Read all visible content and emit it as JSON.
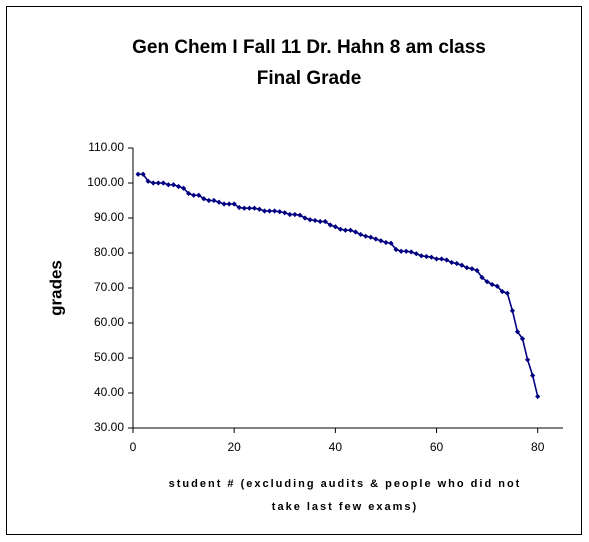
{
  "chart_data": {
    "type": "line",
    "title": [
      "Gen Chem I Fall 11 Dr. Hahn 8 am class",
      "Final Grade"
    ],
    "y_label": "grades",
    "x_label": [
      "student # (excluding audits & people who did not",
      "take last few exams)"
    ],
    "x": [
      1,
      2,
      3,
      4,
      5,
      6,
      7,
      8,
      9,
      10,
      11,
      12,
      13,
      14,
      15,
      16,
      17,
      18,
      19,
      20,
      21,
      22,
      23,
      24,
      25,
      26,
      27,
      28,
      29,
      30,
      31,
      32,
      33,
      34,
      35,
      36,
      37,
      38,
      39,
      40,
      41,
      42,
      43,
      44,
      45,
      46,
      47,
      48,
      49,
      50,
      51,
      52,
      53,
      54,
      55,
      56,
      57,
      58,
      59,
      60,
      61,
      62,
      63,
      64,
      65,
      66,
      67,
      68,
      69,
      70,
      71,
      72,
      73,
      74,
      75,
      76,
      77,
      78,
      79,
      80
    ],
    "series": [
      {
        "name": "grades",
        "color": "#000080",
        "values": [
          102.5,
          102.5,
          100.5,
          100,
          100,
          100,
          99.5,
          99.5,
          99,
          98.5,
          97,
          96.5,
          96.5,
          95.5,
          95,
          95,
          94.5,
          94,
          94,
          94,
          93,
          92.8,
          92.8,
          92.8,
          92.5,
          92,
          92,
          92,
          91.8,
          91.5,
          91,
          91,
          90.8,
          90,
          89.5,
          89.3,
          89,
          89,
          88,
          87.5,
          86.8,
          86.5,
          86.5,
          86,
          85.3,
          84.8,
          84.5,
          84,
          83.5,
          83,
          82.8,
          81,
          80.5,
          80.5,
          80.3,
          79.8,
          79.2,
          79,
          78.8,
          78.3,
          78.3,
          78,
          77.3,
          77,
          76.5,
          75.8,
          75.5,
          75,
          73,
          71.8,
          71,
          70.5,
          69,
          68.5,
          63.5,
          57.5,
          55.5,
          49.5,
          45,
          39
        ]
      }
    ],
    "xlim": [
      0,
      85
    ],
    "xticks": [
      0,
      20,
      40,
      60,
      80
    ],
    "ylim": [
      30,
      110
    ],
    "yticks": [
      {
        "value": 30,
        "label": "30.00"
      },
      {
        "value": 40,
        "label": "40.00"
      },
      {
        "value": 50,
        "label": "50.00"
      },
      {
        "value": 60,
        "label": "60.00"
      },
      {
        "value": 70,
        "label": "70.00"
      },
      {
        "value": 80,
        "label": "80.00"
      },
      {
        "value": 90,
        "label": "90.00"
      },
      {
        "value": 100,
        "label": "100.00"
      },
      {
        "value": 110,
        "label": "110.00"
      }
    ],
    "grid": false
  }
}
